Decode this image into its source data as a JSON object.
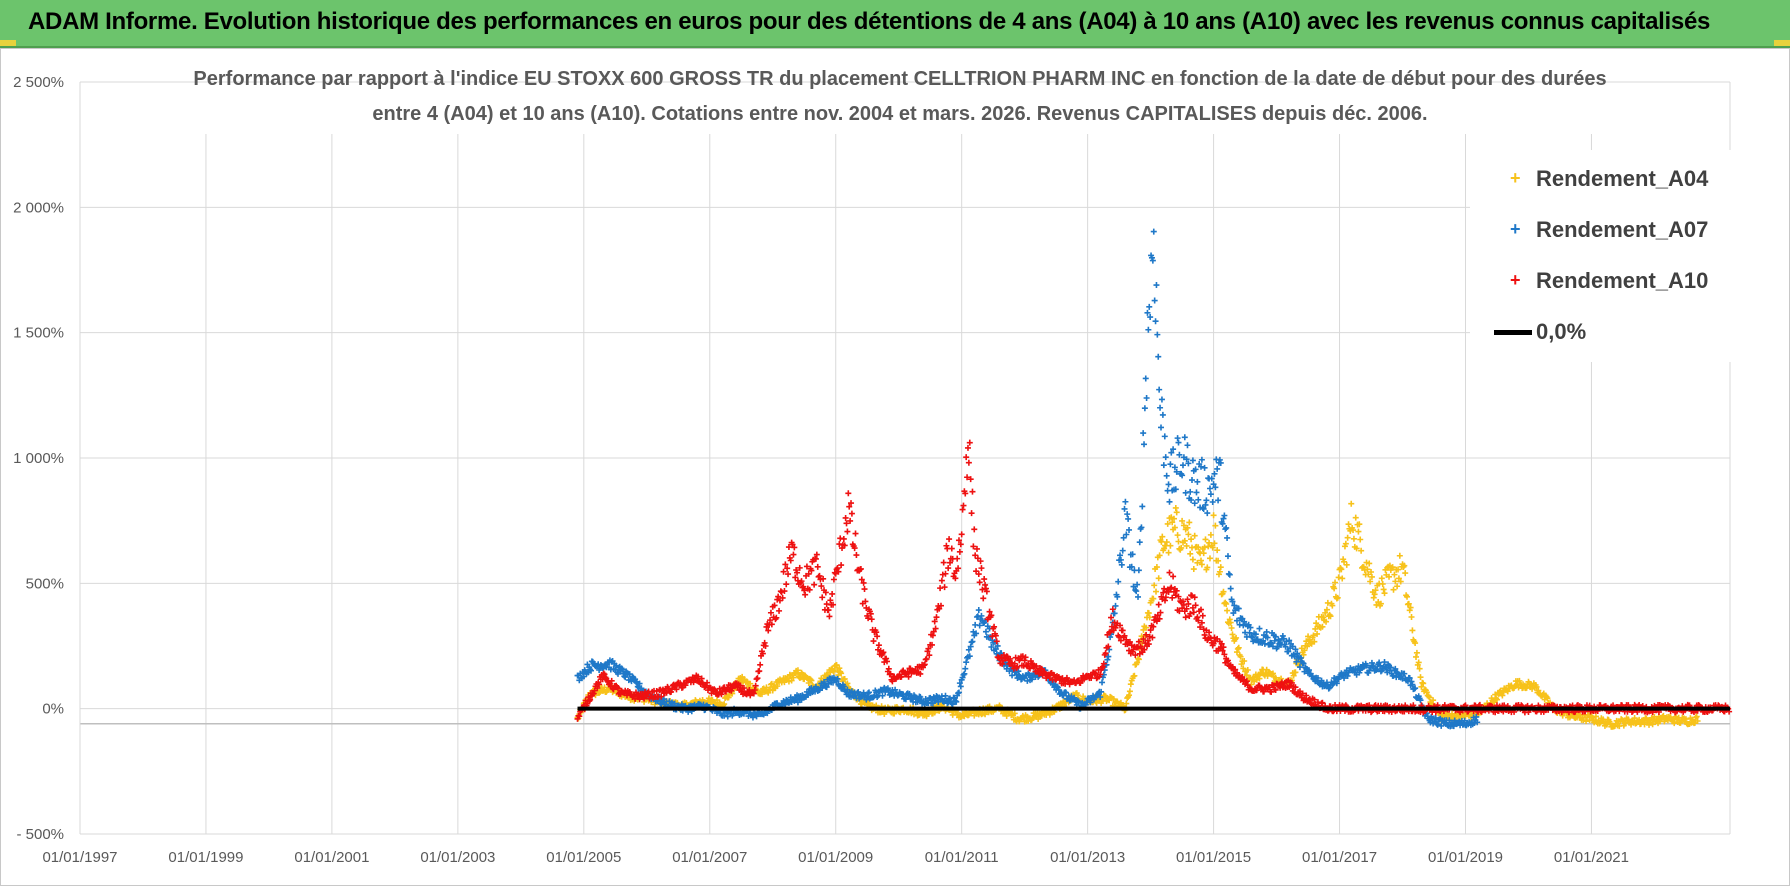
{
  "header": {
    "title": "ADAM Informe. Evolution historique des performances en euros pour des détentions de 4 ans (A04) à 10 ans (A10) avec les revenus connus capitalisés"
  },
  "colors": {
    "banner": "#6cc46c",
    "A04": "#f7c21b",
    "A07": "#1f78c8",
    "A10": "#ee1111",
    "zero": "#000000",
    "grid": "#d9d9d9"
  },
  "chart_data": {
    "type": "scatter",
    "title_line1": "Performance par rapport à l'indice EU STOXX 600 GROSS TR  du placement CELLTRION PHARM INC en fonction de la date de début pour des durées",
    "title_line2": "entre 4 (A04) et 10 ans (A10). Cotations entre nov. 2004 et mars. 2026. Revenus CAPITALISES depuis déc. 2006.",
    "x_ticks": [
      "01/01/1997",
      "01/01/1999",
      "01/01/2001",
      "01/01/2003",
      "01/01/2005",
      "01/01/2007",
      "01/01/2009",
      "01/01/2011",
      "01/01/2013",
      "01/01/2015",
      "01/01/2017",
      "01/01/2019",
      "01/01/2021"
    ],
    "y_ticks": [
      "- 500%",
      "0%",
      "500%",
      "1 000%",
      "1 500%",
      "2 000%",
      "2 500%"
    ],
    "xlim": [
      1997.0,
      2023.2
    ],
    "ylim": [
      -500,
      2500
    ],
    "legend_position": "right",
    "grid": true,
    "series": [
      {
        "name": "Rendement_A04",
        "x": [
          2004.9,
          2005.1,
          2005.4,
          2005.7,
          2006.0,
          2006.3,
          2006.6,
          2006.9,
          2007.2,
          2007.5,
          2007.8,
          2008.1,
          2008.4,
          2008.7,
          2009.0,
          2009.2,
          2009.5,
          2009.8,
          2010.1,
          2010.4,
          2010.7,
          2011.0,
          2011.3,
          2011.6,
          2011.9,
          2012.2,
          2012.5,
          2012.8,
          2013.0,
          2013.3,
          2013.6,
          2013.8,
          2014.0,
          2014.2,
          2014.4,
          2014.6,
          2014.8,
          2015.0,
          2015.2,
          2015.4,
          2015.6,
          2015.8,
          2016.0,
          2016.2,
          2016.4,
          2016.6,
          2016.8,
          2017.0,
          2017.2,
          2017.4,
          2017.6,
          2017.8,
          2018.0,
          2018.3,
          2018.6,
          2018.9,
          2019.2,
          2019.5,
          2019.8,
          2020.1,
          2020.4,
          2020.7,
          2021.0,
          2021.3,
          2021.6,
          2021.9,
          2022.2,
          2022.5,
          2022.7
        ],
        "y": [
          -40,
          60,
          80,
          50,
          40,
          20,
          10,
          30,
          20,
          120,
          60,
          100,
          140,
          90,
          170,
          80,
          10,
          -10,
          0,
          -20,
          10,
          -30,
          -10,
          0,
          -40,
          -30,
          0,
          50,
          30,
          40,
          0,
          200,
          420,
          660,
          720,
          680,
          560,
          720,
          400,
          220,
          110,
          150,
          120,
          100,
          220,
          300,
          380,
          500,
          760,
          600,
          450,
          520,
          560,
          100,
          -30,
          -30,
          -20,
          50,
          100,
          90,
          0,
          -30,
          -40,
          -60,
          -50,
          -50,
          -40,
          -50,
          -40
        ]
      },
      {
        "name": "Rendement_A07",
        "x": [
          2004.9,
          2005.1,
          2005.4,
          2005.7,
          2006.0,
          2006.3,
          2006.6,
          2006.9,
          2007.2,
          2007.5,
          2007.8,
          2008.1,
          2008.4,
          2008.7,
          2009.0,
          2009.2,
          2009.5,
          2009.8,
          2010.1,
          2010.4,
          2010.7,
          2010.9,
          2011.1,
          2011.3,
          2011.5,
          2011.8,
          2012.0,
          2012.3,
          2012.6,
          2012.9,
          2013.2,
          2013.4,
          2013.6,
          2013.8,
          2013.95,
          2014.05,
          2014.15,
          2014.3,
          2014.5,
          2014.7,
          2014.9,
          2015.1,
          2015.3,
          2015.6,
          2015.9,
          2016.2,
          2016.5,
          2016.8,
          2017.1,
          2017.4,
          2017.7,
          2017.9,
          2018.1,
          2018.4,
          2018.7,
          2019.0,
          2019.2
        ],
        "y": [
          120,
          170,
          180,
          130,
          60,
          20,
          0,
          10,
          -20,
          -10,
          -30,
          20,
          40,
          80,
          120,
          60,
          50,
          70,
          50,
          30,
          40,
          30,
          200,
          380,
          250,
          150,
          120,
          150,
          60,
          10,
          60,
          320,
          760,
          420,
          1500,
          1900,
          1200,
          900,
          1000,
          900,
          880,
          920,
          400,
          300,
          280,
          250,
          140,
          90,
          140,
          160,
          170,
          140,
          120,
          -40,
          -60,
          -60,
          -40
        ]
      },
      {
        "name": "Rendement_A10",
        "x": [
          2004.9,
          2005.1,
          2005.3,
          2005.6,
          2005.9,
          2006.2,
          2006.5,
          2006.8,
          2007.1,
          2007.4,
          2007.7,
          2007.9,
          2008.1,
          2008.3,
          2008.5,
          2008.7,
          2008.9,
          2009.0,
          2009.2,
          2009.4,
          2009.6,
          2009.9,
          2010.1,
          2010.4,
          2010.6,
          2010.8,
          2010.9,
          2011.0,
          2011.1,
          2011.2,
          2011.4,
          2011.6,
          2011.8,
          2012.0,
          2012.2,
          2012.5,
          2012.8,
          2013.0,
          2013.2,
          2013.4,
          2013.7,
          2013.9,
          2014.1,
          2014.3,
          2014.5,
          2014.7,
          2014.9,
          2015.1,
          2015.3,
          2015.6,
          2015.9,
          2016.2,
          2016.4,
          2016.8,
          2017.3,
          2017.8,
          2018.3,
          2018.8,
          2019.3,
          2019.8,
          2020.3,
          2020.8,
          2021.3,
          2021.8,
          2022.3,
          2022.8,
          2023.2
        ],
        "y": [
          -40,
          50,
          130,
          60,
          50,
          60,
          90,
          120,
          60,
          90,
          50,
          300,
          430,
          620,
          500,
          560,
          380,
          520,
          800,
          500,
          300,
          120,
          140,
          160,
          350,
          650,
          540,
          700,
          1100,
          650,
          420,
          200,
          180,
          190,
          150,
          120,
          100,
          130,
          140,
          360,
          240,
          250,
          350,
          500,
          400,
          420,
          290,
          250,
          150,
          80,
          80,
          100,
          50,
          0,
          0,
          0,
          0,
          0,
          0,
          0,
          0,
          0,
          0,
          0,
          0,
          0,
          0
        ]
      },
      {
        "name": "0,0%",
        "x": [
          2004.9,
          2023.2
        ],
        "y": [
          0,
          0
        ]
      }
    ]
  }
}
